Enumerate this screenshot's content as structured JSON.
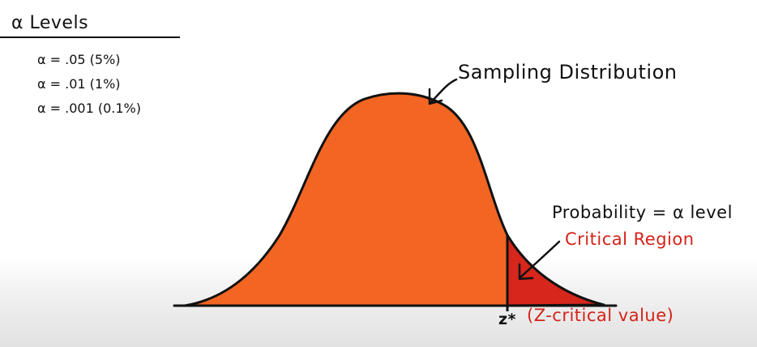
{
  "alpha_panel": {
    "title": "α Levels",
    "levels": [
      "α = .05 (5%)",
      "α = .01 (1%)",
      "α = .001 (0.1%)"
    ]
  },
  "curve": {
    "label": "Sampling Distribution",
    "fill_color": "#f26522",
    "critical_color": "#d7261c"
  },
  "annotations": {
    "probability": "Probability = α level",
    "critical_region": "Critical Region",
    "z_star": "z*",
    "z_critical": "(Z-critical value)"
  }
}
